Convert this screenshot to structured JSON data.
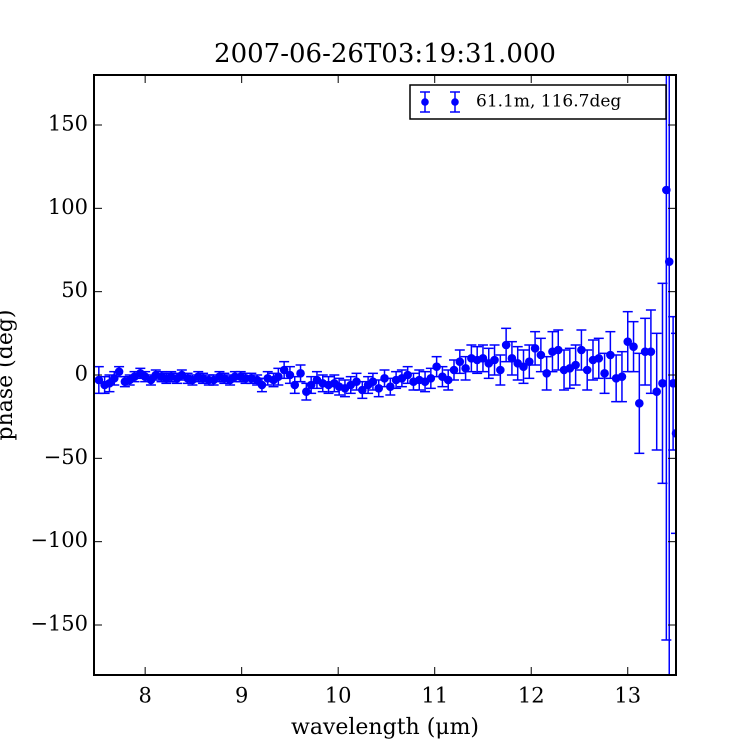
{
  "chart_data": {
    "type": "errorbar",
    "title": "2007-06-26T03:19:31.000",
    "xlabel": "wavelength (μm)",
    "ylabel": "phase (deg)",
    "xlim": [
      7.47,
      13.5
    ],
    "ylim": [
      -180,
      180
    ],
    "xticks": [
      8,
      9,
      10,
      11,
      12,
      13
    ],
    "yticks": [
      {
        "value": -150,
        "label": "−150"
      },
      {
        "value": -100,
        "label": "−100"
      },
      {
        "value": -50,
        "label": "−50"
      },
      0,
      50,
      100,
      150
    ],
    "legend": "upper right",
    "series": [
      {
        "name": "61.1m, 116.7deg",
        "color": "#0000ff",
        "x": [
          7.52,
          7.58,
          7.63,
          7.68,
          7.73,
          7.79,
          7.84,
          7.89,
          7.95,
          8.0,
          8.06,
          8.11,
          8.17,
          8.22,
          8.27,
          8.33,
          8.38,
          8.44,
          8.49,
          8.55,
          8.6,
          8.66,
          8.71,
          8.77,
          8.82,
          8.88,
          8.93,
          8.99,
          9.04,
          9.1,
          9.16,
          9.21,
          9.27,
          9.33,
          9.38,
          9.44,
          9.5,
          9.55,
          9.61,
          9.67,
          9.72,
          9.78,
          9.84,
          9.9,
          9.96,
          10.01,
          10.07,
          10.13,
          10.19,
          10.25,
          10.31,
          10.36,
          10.42,
          10.48,
          10.54,
          10.6,
          10.66,
          10.72,
          10.78,
          10.84,
          10.9,
          10.96,
          11.02,
          11.08,
          11.14,
          11.2,
          11.26,
          11.32,
          11.38,
          11.44,
          11.5,
          11.56,
          11.62,
          11.68,
          11.74,
          11.8,
          11.86,
          11.92,
          11.98,
          12.04,
          12.1,
          12.16,
          12.22,
          12.28,
          12.34,
          12.4,
          12.46,
          12.52,
          12.58,
          12.64,
          12.7,
          12.76,
          12.82,
          12.88,
          12.94,
          13.0,
          13.06,
          13.12,
          13.18,
          13.24,
          13.3,
          13.36,
          13.4,
          13.43,
          13.47,
          13.5
        ],
        "values": [
          -3,
          -6,
          -5,
          -2,
          2,
          -4,
          -3,
          -1,
          1,
          -1,
          -3,
          0,
          -1,
          -2,
          -1,
          -2,
          0,
          -2,
          -3,
          -1,
          -2,
          -3,
          -3,
          -1,
          -2,
          -3,
          -1,
          -1,
          -2,
          -2,
          -3,
          -6,
          -2,
          -3,
          -1,
          3,
          0,
          -6,
          1,
          -10,
          -6,
          -3,
          -5,
          -6,
          -5,
          -7,
          -8,
          -6,
          -4,
          -9,
          -6,
          -4,
          -8,
          -2,
          -7,
          -3,
          -2,
          0,
          -4,
          -3,
          -4,
          -2,
          5,
          -1,
          -3,
          3,
          8,
          4,
          10,
          9,
          10,
          7,
          9,
          3,
          18,
          10,
          7,
          5,
          8,
          16,
          12,
          1,
          14,
          15,
          3,
          4,
          6,
          15,
          3,
          9,
          10,
          1,
          12,
          -2,
          -1,
          20,
          17,
          -17,
          14,
          14,
          -10,
          -5,
          111,
          68,
          -5,
          -35
        ],
        "errors": [
          8,
          5,
          5,
          4,
          3,
          3,
          3,
          3,
          3,
          3,
          3,
          3,
          3,
          3,
          3,
          3,
          3,
          3,
          3,
          3,
          3,
          3,
          3,
          3,
          3,
          3,
          3,
          3,
          3,
          3,
          3,
          4,
          4,
          4,
          5,
          5,
          5,
          5,
          5,
          5,
          5,
          5,
          5,
          5,
          5,
          5,
          5,
          5,
          5,
          5,
          5,
          5,
          5,
          5,
          5,
          5,
          5,
          5,
          5,
          6,
          6,
          6,
          6,
          6,
          6,
          6,
          7,
          7,
          8,
          8,
          8,
          9,
          9,
          9,
          10,
          10,
          10,
          10,
          10,
          10,
          10,
          10,
          12,
          12,
          12,
          12,
          12,
          12,
          12,
          12,
          12,
          12,
          14,
          14,
          15,
          18,
          15,
          30,
          20,
          25,
          35,
          60,
          270,
          250,
          40,
          60
        ]
      }
    ]
  }
}
